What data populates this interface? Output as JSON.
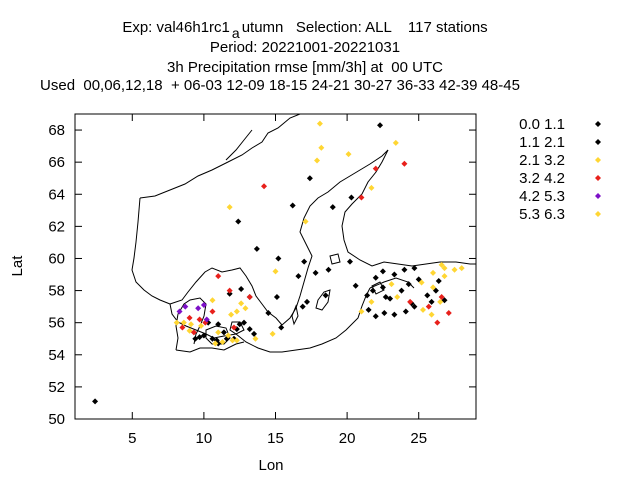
{
  "header": {
    "line1_pre": "Exp: val46h1rc1",
    "line1_sub": "a",
    "line1_post": "utumn   Selection: ALL    117 stations",
    "line2": "Period: 20221001-20221031",
    "line3": "3h Precipitation rmse [mm/3h] at  00 UTC",
    "line4": "Used  00,06,12,18  + 06-03 12-09 18-15 24-21 30-27 36-33 42-39 48-45"
  },
  "chart_data": {
    "type": "scatter",
    "xlabel": "Lon",
    "ylabel": "Lat",
    "xlim": [
      1,
      29
    ],
    "ylim": [
      50,
      69
    ],
    "xticks": [
      5,
      10,
      15,
      20,
      25
    ],
    "yticks": [
      50,
      52,
      54,
      56,
      58,
      60,
      62,
      64,
      66,
      68
    ],
    "grid": false,
    "legend_position": "right",
    "series": [
      {
        "name": "0.0 1.1",
        "color": "#000000",
        "points": [
          [
            2.4,
            51.1
          ],
          [
            22.3,
            68.3
          ],
          [
            17.4,
            65.0
          ],
          [
            16.2,
            63.3
          ],
          [
            19.0,
            63.2
          ],
          [
            20.3,
            63.8
          ],
          [
            12.4,
            62.3
          ],
          [
            13.7,
            60.6
          ],
          [
            15.2,
            60.0
          ],
          [
            17.0,
            59.8
          ],
          [
            16.6,
            58.9
          ],
          [
            18.7,
            59.3
          ],
          [
            20.2,
            59.8
          ],
          [
            22.0,
            58.8
          ],
          [
            22.5,
            59.2
          ],
          [
            23.3,
            59.0
          ],
          [
            24.0,
            59.3
          ],
          [
            24.7,
            59.4
          ],
          [
            25.0,
            58.7
          ],
          [
            24.3,
            58.4
          ],
          [
            26.4,
            58.6
          ],
          [
            22.5,
            58.2
          ],
          [
            21.4,
            57.7
          ],
          [
            23.0,
            57.5
          ],
          [
            21.5,
            56.8
          ],
          [
            22.6,
            56.6
          ],
          [
            23.3,
            56.5
          ],
          [
            24.1,
            56.7
          ],
          [
            24.7,
            57.0
          ],
          [
            26.8,
            57.4
          ],
          [
            21.8,
            58.0
          ],
          [
            23.8,
            58.0
          ],
          [
            15.1,
            57.6
          ],
          [
            14.5,
            56.6
          ],
          [
            15.4,
            55.7
          ],
          [
            17.2,
            57.3
          ],
          [
            12.6,
            58.1
          ],
          [
            13.2,
            57.6
          ],
          [
            11.8,
            57.8
          ],
          [
            11.0,
            55.9
          ],
          [
            10.3,
            56.0
          ],
          [
            9.7,
            55.1
          ],
          [
            9.4,
            55.0
          ],
          [
            10.6,
            55.0
          ],
          [
            11.4,
            55.4
          ],
          [
            12.3,
            55.6
          ],
          [
            10.9,
            54.9
          ],
          [
            11.6,
            55.0
          ],
          [
            12.5,
            55.9
          ],
          [
            12.1,
            55.0
          ],
          [
            12.8,
            56.0
          ],
          [
            13.5,
            55.3
          ],
          [
            17.8,
            59.1
          ],
          [
            18.5,
            57.7
          ],
          [
            16.9,
            57.0
          ],
          [
            13.2,
            55.6
          ],
          [
            22.7,
            57.6
          ],
          [
            25.6,
            57.7
          ],
          [
            20.6,
            58.3
          ]
        ]
      },
      {
        "name": "1.1 2.1",
        "color": "#000000",
        "points": [
          [
            26.2,
            58.0
          ],
          [
            25.9,
            57.3
          ],
          [
            24.5,
            57.2
          ],
          [
            11.0,
            54.7
          ],
          [
            10.0,
            55.2
          ],
          [
            22.0,
            56.4
          ]
        ]
      },
      {
        "name": "2.1 3.2",
        "color": "#ffd633",
        "points": [
          [
            18.1,
            68.4
          ],
          [
            23.4,
            67.2
          ],
          [
            18.2,
            66.9
          ],
          [
            20.1,
            66.5
          ],
          [
            17.9,
            66.1
          ],
          [
            11.8,
            63.2
          ],
          [
            15.0,
            59.2
          ],
          [
            21.7,
            64.4
          ],
          [
            17.1,
            62.3
          ],
          [
            8.6,
            56.0
          ],
          [
            8.1,
            56.0
          ],
          [
            9.1,
            55.9
          ],
          [
            9.0,
            55.5
          ],
          [
            9.8,
            55.8
          ],
          [
            11.0,
            55.4
          ],
          [
            11.7,
            55.2
          ],
          [
            12.0,
            54.9
          ],
          [
            11.3,
            54.8
          ],
          [
            10.8,
            54.7
          ],
          [
            12.3,
            54.9
          ],
          [
            12.9,
            56.9
          ],
          [
            14.8,
            55.3
          ],
          [
            13.6,
            55.0
          ],
          [
            12.6,
            57.2
          ],
          [
            21.0,
            56.7
          ],
          [
            21.7,
            57.3
          ],
          [
            23.5,
            57.6
          ],
          [
            25.3,
            56.8
          ],
          [
            25.9,
            56.5
          ],
          [
            26.5,
            57.3
          ],
          [
            26.0,
            58.2
          ],
          [
            25.2,
            58.5
          ],
          [
            26.8,
            58.9
          ],
          [
            27.5,
            59.3
          ],
          [
            28.0,
            59.4
          ],
          [
            26.8,
            59.4
          ],
          [
            26.0,
            59.1
          ],
          [
            26.6,
            59.6
          ],
          [
            23.1,
            58.4
          ]
        ]
      },
      {
        "name": "3.2 4.2",
        "color": "#e8201b",
        "points": [
          [
            14.2,
            64.5
          ],
          [
            22.0,
            65.6
          ],
          [
            24.0,
            65.9
          ],
          [
            21.0,
            63.8
          ],
          [
            11.0,
            58.9
          ],
          [
            11.8,
            58.0
          ],
          [
            13.2,
            57.6
          ],
          [
            8.5,
            55.7
          ],
          [
            9.3,
            55.4
          ],
          [
            9.7,
            56.2
          ],
          [
            10.1,
            56.0
          ],
          [
            10.6,
            56.7
          ],
          [
            12.1,
            55.7
          ],
          [
            25.7,
            57.0
          ],
          [
            26.3,
            56.0
          ],
          [
            27.1,
            56.6
          ],
          [
            26.6,
            57.6
          ],
          [
            24.4,
            57.3
          ],
          [
            9.0,
            56.3
          ]
        ]
      },
      {
        "name": "4.2 5.3",
        "color": "#7d10c8",
        "points": [
          [
            8.3,
            56.7
          ],
          [
            8.7,
            57.0
          ],
          [
            10.0,
            57.1
          ],
          [
            10.2,
            56.2
          ],
          [
            9.6,
            56.9
          ]
        ]
      },
      {
        "name": "5.3 6.3",
        "color": "#ffd633",
        "points": [
          [
            10.6,
            57.4
          ],
          [
            12.3,
            56.7
          ],
          [
            11.9,
            56.5
          ]
        ]
      }
    ]
  }
}
